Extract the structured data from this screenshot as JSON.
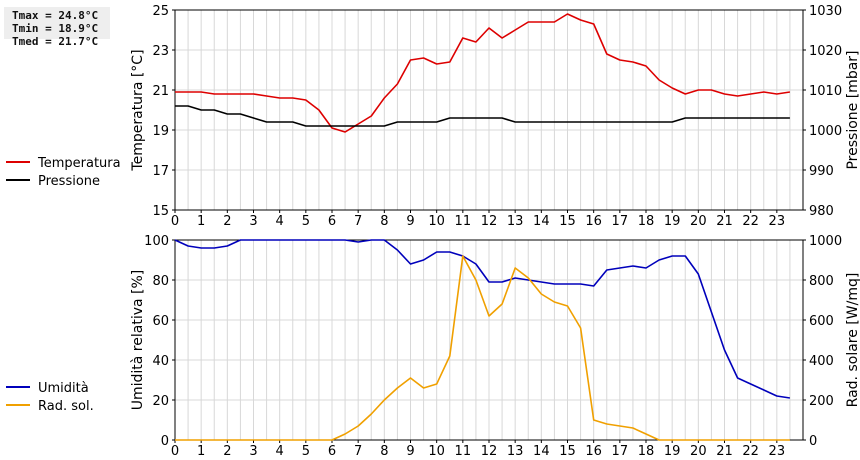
{
  "stats": {
    "tmax": "Tmax = 24.8°C",
    "tmin": "Tmin = 18.9°C",
    "tmed": "Tmed = 21.7°C"
  },
  "colors": {
    "temperature": "#dd0000",
    "pressure": "#000000",
    "humidity": "#0000bb",
    "radiation": "#f0a000",
    "grid": "#d8d8d8"
  },
  "chart_data": [
    {
      "type": "line",
      "xlim": [
        0,
        24
      ],
      "x_ticks": [
        0,
        1,
        2,
        3,
        4,
        5,
        6,
        7,
        8,
        9,
        10,
        11,
        12,
        13,
        14,
        15,
        16,
        17,
        18,
        19,
        20,
        21,
        22,
        23
      ],
      "ylabel": "Temperatura [°C]",
      "ylim": [
        15,
        25
      ],
      "y_ticks": [
        15,
        17,
        19,
        21,
        23,
        25
      ],
      "y2label": "Pressione [mbar]",
      "y2lim": [
        980,
        1030
      ],
      "y2_ticks": [
        980,
        990,
        1000,
        1010,
        1020,
        1030
      ],
      "legend": "left",
      "grid": true,
      "series": [
        {
          "name": "Temperatura",
          "axis": "left",
          "x": [
            0,
            0.5,
            1,
            1.5,
            2,
            2.5,
            3,
            3.5,
            4,
            4.5,
            5,
            5.5,
            6,
            6.5,
            7,
            7.5,
            8,
            8.5,
            9,
            9.5,
            10,
            10.5,
            11,
            11.5,
            12,
            12.5,
            13,
            13.5,
            14,
            14.5,
            15,
            15.5,
            16,
            16.5,
            17,
            17.5,
            18,
            18.5,
            19,
            19.5,
            20,
            20.5,
            21,
            21.5,
            22,
            22.5,
            23,
            23.5
          ],
          "values": [
            20.9,
            20.9,
            20.9,
            20.8,
            20.8,
            20.8,
            20.8,
            20.7,
            20.6,
            20.6,
            20.5,
            20.0,
            19.1,
            18.9,
            19.3,
            19.7,
            20.6,
            21.3,
            22.5,
            22.6,
            22.3,
            22.4,
            23.6,
            23.4,
            24.1,
            23.6,
            24.0,
            24.4,
            24.4,
            24.4,
            24.8,
            24.5,
            24.3,
            22.8,
            22.5,
            22.4,
            22.2,
            21.5,
            21.1,
            20.8,
            21.0,
            21.0,
            20.8,
            20.7,
            20.8,
            20.9,
            20.8,
            20.9
          ]
        },
        {
          "name": "Pressione",
          "axis": "right",
          "x": [
            0,
            0.5,
            1,
            1.5,
            2,
            2.5,
            3,
            3.5,
            4,
            4.5,
            5,
            5.5,
            6,
            6.5,
            7,
            7.5,
            8,
            8.5,
            9,
            9.5,
            10,
            10.5,
            11,
            11.5,
            12,
            12.5,
            13,
            13.5,
            14,
            14.5,
            15,
            15.5,
            16,
            16.5,
            17,
            17.5,
            18,
            18.5,
            19,
            19.5,
            20,
            20.5,
            21,
            21.5,
            22,
            22.5,
            23,
            23.5
          ],
          "values": [
            1006,
            1006,
            1005,
            1005,
            1004,
            1004,
            1003,
            1002,
            1002,
            1002,
            1001,
            1001,
            1001,
            1001,
            1001,
            1001,
            1001,
            1002,
            1002,
            1002,
            1002,
            1003,
            1003,
            1003,
            1003,
            1003,
            1002,
            1002,
            1002,
            1002,
            1002,
            1002,
            1002,
            1002,
            1002,
            1002,
            1002,
            1002,
            1002,
            1003,
            1003,
            1003,
            1003,
            1003,
            1003,
            1003,
            1003,
            1003
          ]
        }
      ]
    },
    {
      "type": "line",
      "xlim": [
        0,
        24
      ],
      "x_ticks": [
        0,
        1,
        2,
        3,
        4,
        5,
        6,
        7,
        8,
        9,
        10,
        11,
        12,
        13,
        14,
        15,
        16,
        17,
        18,
        19,
        20,
        21,
        22,
        23
      ],
      "ylabel": "Umidità relativa [%]",
      "ylim": [
        0,
        100
      ],
      "y_ticks": [
        0,
        20,
        40,
        60,
        80,
        100
      ],
      "y2label": "Rad. solare [W/mq]",
      "y2lim": [
        0,
        1000
      ],
      "y2_ticks": [
        0,
        200,
        400,
        600,
        800,
        1000
      ],
      "legend": "left",
      "grid": true,
      "series": [
        {
          "name": "Umidità",
          "axis": "left",
          "x": [
            0,
            0.5,
            1,
            1.5,
            2,
            2.5,
            3,
            3.5,
            4,
            4.5,
            5,
            5.5,
            6,
            6.5,
            7,
            7.5,
            8,
            8.5,
            9,
            9.5,
            10,
            10.5,
            11,
            11.5,
            12,
            12.5,
            13,
            13.5,
            14,
            14.5,
            15,
            15.5,
            16,
            16.5,
            17,
            17.5,
            18,
            18.5,
            19,
            19.5,
            20,
            20.5,
            21,
            21.5,
            22,
            22.5,
            23,
            23.5
          ],
          "values": [
            100,
            97,
            96,
            96,
            97,
            100,
            100,
            100,
            100,
            100,
            100,
            100,
            100,
            100,
            99,
            100,
            100,
            95,
            88,
            90,
            94,
            94,
            92,
            88,
            79,
            79,
            81,
            80,
            79,
            78,
            78,
            78,
            77,
            85,
            86,
            87,
            86,
            90,
            92,
            92,
            83,
            64,
            45,
            31,
            28,
            25,
            22,
            21
          ]
        },
        {
          "name": "Rad. sol.",
          "axis": "right",
          "x": [
            0,
            0.5,
            1,
            1.5,
            2,
            2.5,
            3,
            3.5,
            4,
            4.5,
            5,
            5.5,
            6,
            6.5,
            7,
            7.5,
            8,
            8.5,
            9,
            9.5,
            10,
            10.5,
            11,
            11.5,
            12,
            12.5,
            13,
            13.5,
            14,
            14.5,
            15,
            15.5,
            16,
            16.5,
            17,
            17.5,
            18,
            18.5,
            19,
            19.5,
            20,
            20.5,
            21,
            21.5,
            22,
            22.5,
            23,
            23.5
          ],
          "values": [
            0,
            0,
            0,
            0,
            0,
            0,
            0,
            0,
            0,
            0,
            0,
            0,
            0,
            30,
            70,
            130,
            200,
            260,
            310,
            260,
            280,
            420,
            920,
            800,
            620,
            680,
            860,
            810,
            730,
            690,
            670,
            560,
            100,
            80,
            70,
            60,
            30,
            0,
            0,
            0,
            0,
            0,
            0,
            0,
            0,
            0,
            0,
            0
          ]
        }
      ]
    }
  ]
}
